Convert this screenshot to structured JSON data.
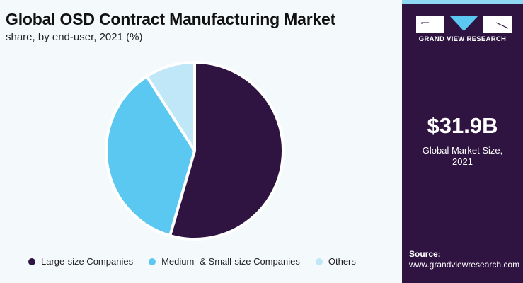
{
  "header": {
    "title": "Global OSD Contract Manufacturing Market",
    "subtitle": "share, by end-user, 2021 (%)"
  },
  "chart_data": {
    "type": "pie",
    "title": "Global OSD Contract Manufacturing Market",
    "subtitle": "share, by end-user, 2021 (%)",
    "categories": [
      "Large-size Companies",
      "Medium- & Small-size Companies",
      "Others"
    ],
    "values": [
      54.5,
      36.4,
      9.1
    ],
    "colors": [
      "#2f1341",
      "#5bc8f2",
      "#bfe7f8"
    ],
    "legend_position": "bottom"
  },
  "panel": {
    "brand": "GRAND VIEW RESEARCH",
    "market_size": "$31.9B",
    "market_size_label": "Global Market Size,",
    "market_size_year": "2021",
    "source_label": "Source:",
    "source_url": "www.grandviewresearch.com"
  }
}
